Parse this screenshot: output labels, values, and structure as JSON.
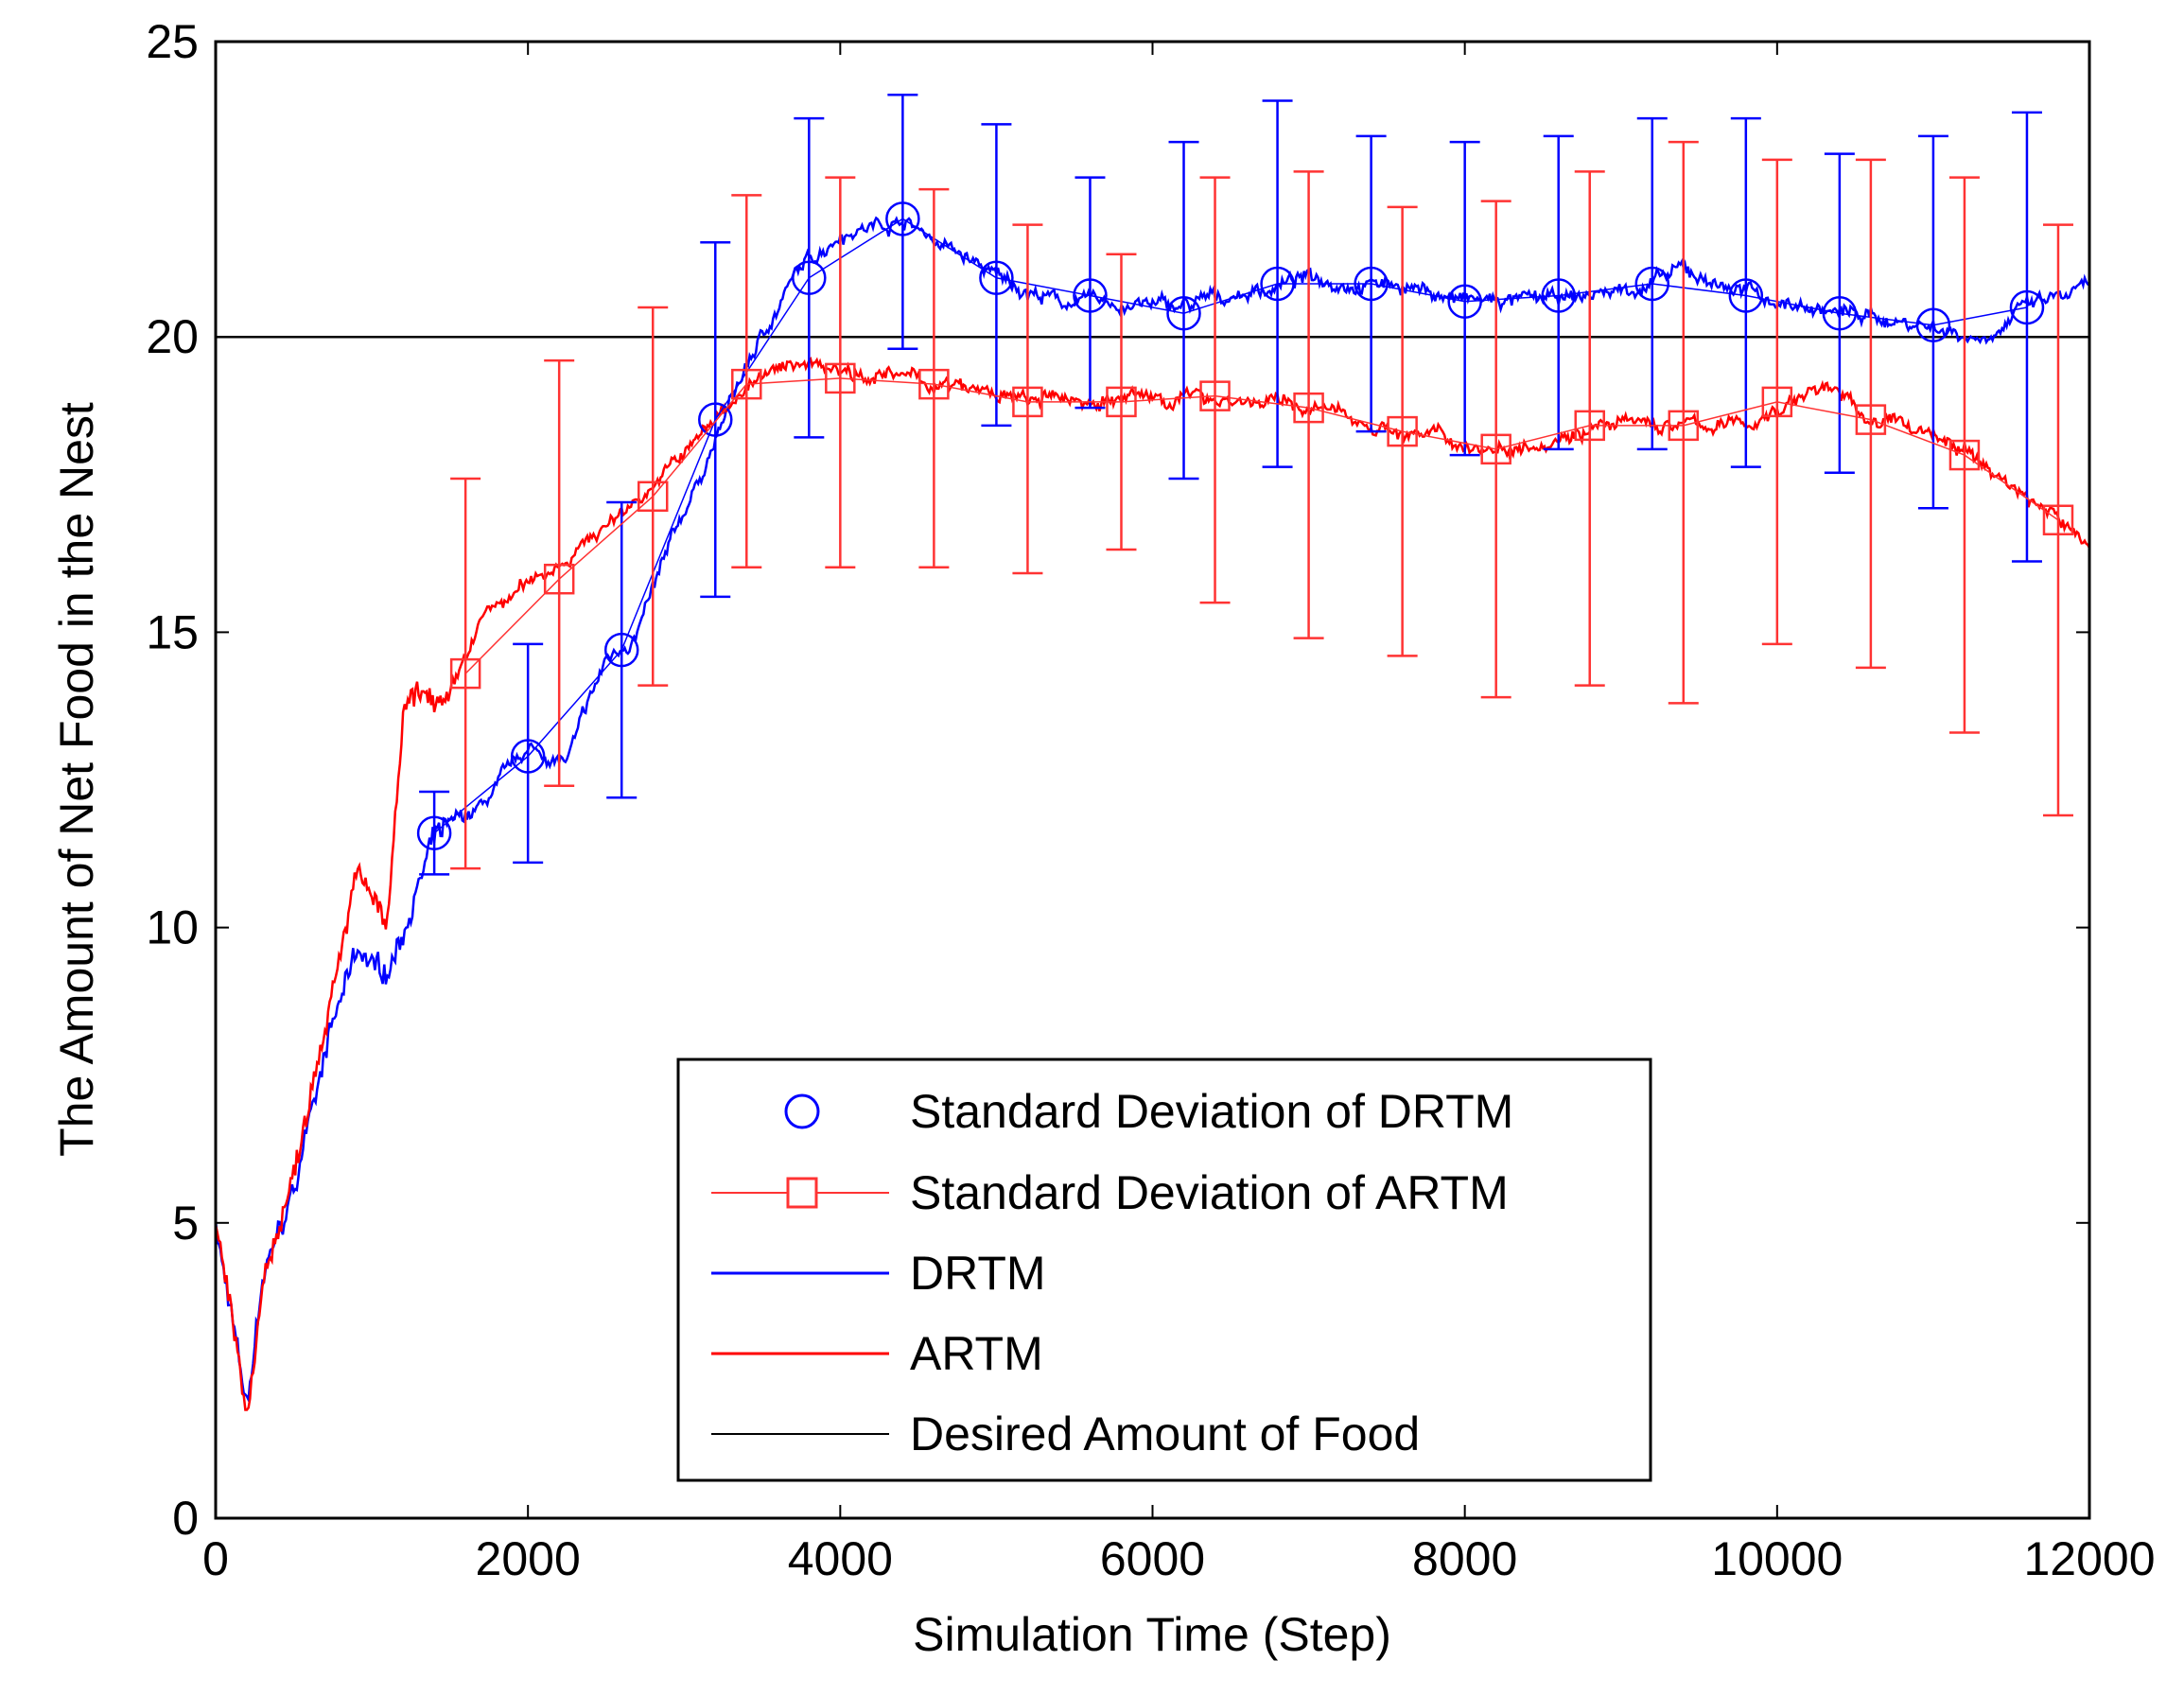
{
  "chart_data": {
    "type": "line",
    "title": "",
    "xlabel": "Simulation Time (Step)",
    "ylabel": "The Amount of Net Food in the Nest",
    "xlim": [
      0,
      12000
    ],
    "ylim": [
      0,
      25
    ],
    "xticks": [
      0,
      2000,
      4000,
      6000,
      8000,
      10000,
      12000
    ],
    "yticks": [
      0,
      5,
      10,
      15,
      20,
      25
    ],
    "grid": false,
    "legend_placement": "bottom-center",
    "desired_amount": 20,
    "series": [
      {
        "name": "DRTM",
        "color": "#0000ff",
        "x": [
          0,
          200,
          300,
          500,
          700,
          900,
          1100,
          1400,
          1700,
          2000,
          2250,
          2500,
          2700,
          3000,
          3400,
          3700,
          4000,
          4400,
          5000,
          5400,
          6200,
          7000,
          7600,
          8000,
          8600,
          9200,
          9400,
          10000,
          10400,
          11000,
          11300,
          11600,
          12000
        ],
        "y": [
          5,
          1.8,
          4,
          5.5,
          8,
          9.5,
          9.2,
          11.5,
          12,
          13,
          12.8,
          14.5,
          15,
          17,
          19.5,
          21,
          21.8,
          22,
          21,
          20.6,
          20.5,
          21,
          20.9,
          20.6,
          20.6,
          20.9,
          21.1,
          20.6,
          20.4,
          20.2,
          20.0,
          20.5,
          20.8
        ]
      },
      {
        "name": "ARTM",
        "color": "#ff0000",
        "x": [
          0,
          200,
          300,
          500,
          700,
          900,
          1100,
          1200,
          1300,
          1500,
          1700,
          2000,
          2500,
          3000,
          3400,
          3800,
          4400,
          5200,
          6400,
          7000,
          7600,
          8200,
          8800,
          9400,
          9800,
          10300,
          10600,
          11000,
          11500,
          12000
        ],
        "y": [
          5,
          1.7,
          4,
          5.8,
          8.5,
          11,
          10,
          13.5,
          13.9,
          13.8,
          15.2,
          15.8,
          16.8,
          18,
          19.2,
          19.6,
          19.3,
          18.9,
          19,
          18.8,
          18.4,
          18.1,
          18.5,
          18.5,
          18.5,
          19.2,
          18.6,
          18.4,
          17.5,
          16.5
        ]
      },
      {
        "name": "Desired Amount of Food",
        "color": "#000000"
      }
    ],
    "errorbars": [
      {
        "name": "Standard Deviation of DRTM",
        "color": "#0000ff",
        "marker": "circle",
        "x": [
          1400,
          2000,
          2600,
          3200,
          3800,
          4400,
          5000,
          5600,
          6200,
          6800,
          7400,
          8000,
          8600,
          9200,
          9800,
          10400,
          11000,
          11600
        ],
        "mean": [
          11.6,
          12.9,
          14.7,
          18.6,
          21.0,
          22.0,
          21.0,
          20.7,
          20.4,
          20.9,
          20.9,
          20.6,
          20.7,
          20.9,
          20.7,
          20.4,
          20.2,
          20.5
        ],
        "low": [
          10.9,
          11.1,
          12.2,
          15.6,
          18.3,
          19.8,
          18.5,
          18.8,
          17.6,
          17.8,
          18.4,
          18.0,
          18.1,
          18.1,
          17.8,
          17.7,
          17.1,
          16.2
        ],
        "high": [
          12.3,
          14.8,
          17.2,
          21.6,
          23.7,
          24.1,
          23.6,
          22.7,
          23.3,
          24.0,
          23.4,
          23.3,
          23.4,
          23.7,
          23.7,
          23.1,
          23.4,
          23.8
        ]
      },
      {
        "name": "Standard Deviation of ARTM",
        "color": "#ff3333",
        "marker": "square",
        "x": [
          1600,
          2200,
          2800,
          3400,
          4000,
          4600,
          5200,
          5800,
          6400,
          7000,
          7600,
          8200,
          8800,
          9400,
          10000,
          10600,
          11200,
          11800
        ],
        "mean": [
          14.3,
          15.9,
          17.3,
          19.2,
          19.3,
          19.2,
          18.9,
          18.9,
          19.0,
          18.8,
          18.4,
          18.1,
          18.5,
          18.5,
          18.9,
          18.6,
          18.0,
          16.9
        ],
        "low": [
          11.0,
          12.4,
          14.1,
          16.1,
          16.1,
          16.1,
          16.0,
          16.4,
          15.5,
          14.9,
          14.6,
          13.9,
          14.1,
          13.8,
          14.8,
          14.4,
          13.3,
          11.9
        ],
        "high": [
          17.6,
          19.6,
          20.5,
          22.4,
          22.7,
          22.5,
          21.9,
          21.4,
          22.7,
          22.8,
          22.2,
          22.3,
          22.8,
          23.3,
          23.0,
          23.0,
          22.7,
          21.9
        ]
      }
    ],
    "legend": [
      "Standard Deviation of DRTM",
      "Standard Deviation of ARTM",
      "DRTM",
      "ARTM",
      "Desired Amount of Food"
    ]
  }
}
